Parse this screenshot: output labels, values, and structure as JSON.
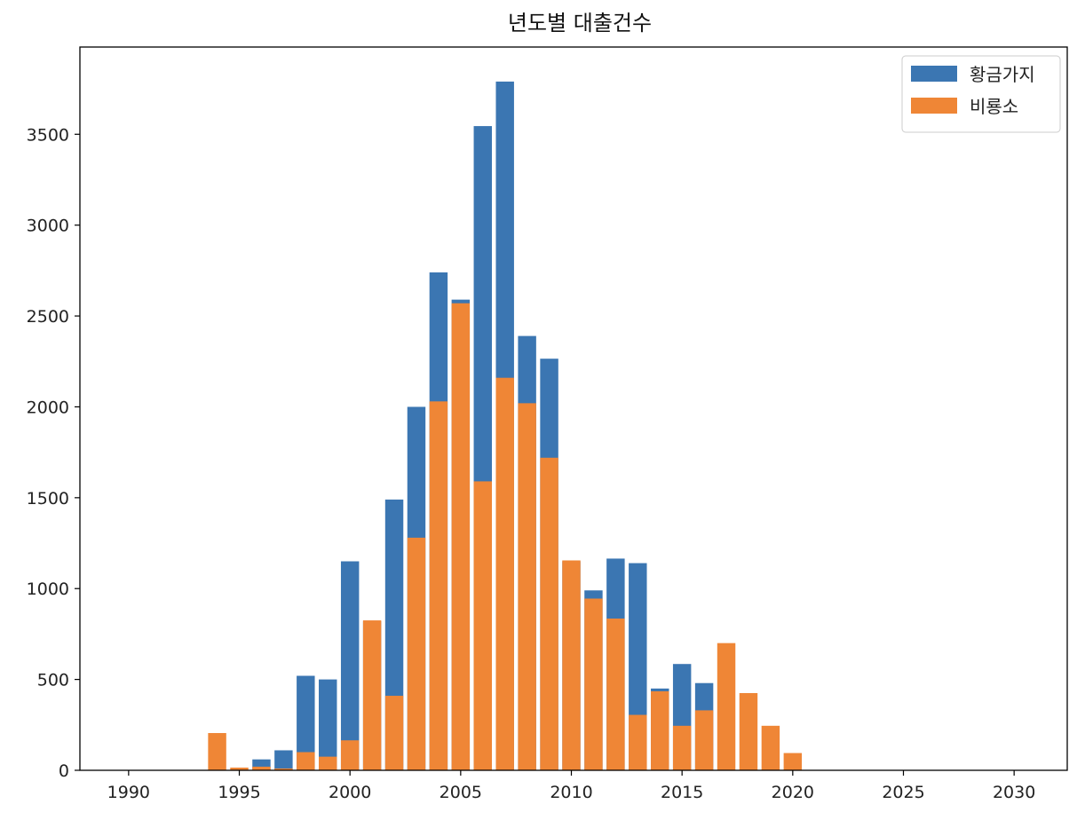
{
  "chart_data": {
    "type": "bar",
    "title": "년도별 대출건수",
    "xlabel": "",
    "ylabel": "",
    "xlim": [
      1987.8,
      2032.4
    ],
    "ylim": [
      0,
      3980
    ],
    "x_ticks": [
      "1990",
      "1995",
      "2000",
      "2005",
      "2010",
      "2015",
      "2020",
      "2025",
      "2030"
    ],
    "y_ticks": [
      "0",
      "500",
      "1000",
      "1500",
      "2000",
      "2500",
      "3000",
      "3500"
    ],
    "grid": false,
    "legend_position": "top-right",
    "overlay": true,
    "series": [
      {
        "name": "황금가지",
        "color": "#3b76b2",
        "x": [
          1996,
          1997,
          1998,
          1999,
          2000,
          2001,
          2002,
          2003,
          2004,
          2005,
          2006,
          2007,
          2008,
          2009,
          2010,
          2011,
          2012,
          2013,
          2014,
          2015,
          2016
        ],
        "values": [
          60,
          110,
          520,
          500,
          1150,
          820,
          1490,
          2000,
          2740,
          2590,
          3545,
          3790,
          2390,
          2265,
          1150,
          990,
          1165,
          1140,
          450,
          585,
          480
        ]
      },
      {
        "name": "비룡소",
        "color": "#ef8636",
        "x": [
          1994,
          1995,
          1996,
          1997,
          1998,
          1999,
          2000,
          2001,
          2002,
          2003,
          2004,
          2005,
          2006,
          2007,
          2008,
          2009,
          2010,
          2011,
          2012,
          2013,
          2014,
          2015,
          2016,
          2017,
          2018,
          2019,
          2020
        ],
        "values": [
          205,
          15,
          20,
          10,
          100,
          75,
          165,
          825,
          410,
          1280,
          2030,
          2570,
          1590,
          2160,
          2020,
          1720,
          1155,
          945,
          835,
          305,
          435,
          245,
          330,
          700,
          425,
          245,
          95
        ]
      }
    ]
  }
}
